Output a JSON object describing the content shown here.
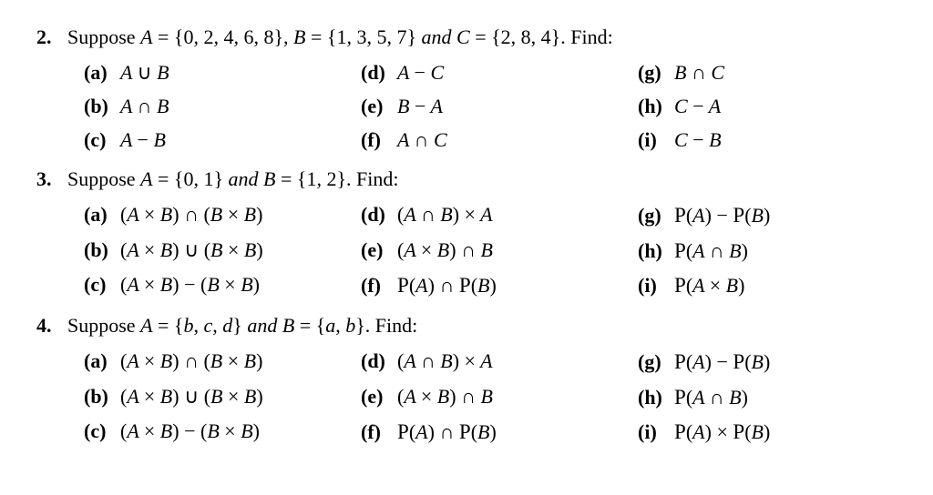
{
  "problems": [
    {
      "num": "2.",
      "stem_prefix": "Suppose ",
      "stem_sets": "A = {0, 2, 4, 6, 8},  B = {1, 3, 5, 7} and C = {2, 8, 4}.",
      "stem_suffix": "  Find:",
      "parts": [
        {
          "lbl": "(a)",
          "expr": "A ∪ B"
        },
        {
          "lbl": "(d)",
          "expr": "A − C"
        },
        {
          "lbl": "(g)",
          "expr": "B ∩ C"
        },
        {
          "lbl": "(b)",
          "expr": "A ∩ B"
        },
        {
          "lbl": "(e)",
          "expr": "B − A"
        },
        {
          "lbl": "(h)",
          "expr": "C − A"
        },
        {
          "lbl": "(c)",
          "expr": "A − B"
        },
        {
          "lbl": "(f)",
          "expr": "A ∩ C"
        },
        {
          "lbl": "(i)",
          "expr": "C − B"
        }
      ]
    },
    {
      "num": "3.",
      "stem_prefix": "Suppose ",
      "stem_sets": "A = {0, 1} and B = {1, 2}.",
      "stem_suffix": "  Find:",
      "parts": [
        {
          "lbl": "(a)",
          "expr": "(A × B) ∩ (B × B)"
        },
        {
          "lbl": "(d)",
          "expr": "(A ∩ B) × A"
        },
        {
          "lbl": "(g)",
          "expr": "𝒫(A) − 𝒫(B)",
          "script": true
        },
        {
          "lbl": "(b)",
          "expr": "(A × B) ∪ (B × B)"
        },
        {
          "lbl": "(e)",
          "expr": "(A × B) ∩ B"
        },
        {
          "lbl": "(h)",
          "expr": "𝒫(A ∩ B)",
          "script": true
        },
        {
          "lbl": "(c)",
          "expr": "(A × B) − (B × B)"
        },
        {
          "lbl": "(f)",
          "expr": "𝒫(A) ∩ 𝒫(B)",
          "script": true
        },
        {
          "lbl": "(i)",
          "expr": "𝒫(A × B)",
          "script": true
        }
      ]
    },
    {
      "num": "4.",
      "stem_prefix": "Suppose ",
      "stem_sets": "A = {b, c, d} and B = {a, b}.",
      "stem_suffix": "  Find:",
      "parts": [
        {
          "lbl": "(a)",
          "expr": "(A × B) ∩ (B × B)"
        },
        {
          "lbl": "(d)",
          "expr": "(A ∩ B) × A"
        },
        {
          "lbl": "(g)",
          "expr": "𝒫(A) − 𝒫(B)",
          "script": true
        },
        {
          "lbl": "(b)",
          "expr": "(A × B) ∪ (B × B)"
        },
        {
          "lbl": "(e)",
          "expr": "(A × B) ∩ B"
        },
        {
          "lbl": "(h)",
          "expr": "𝒫(A ∩ B)",
          "script": true
        },
        {
          "lbl": "(c)",
          "expr": "(A × B) − (B × B)"
        },
        {
          "lbl": "(f)",
          "expr": "𝒫(A) ∩ 𝒫(B)",
          "script": true
        },
        {
          "lbl": "(i)",
          "expr": "𝒫(A) × 𝒫(B)",
          "script": true
        }
      ]
    }
  ],
  "style": {
    "font_family": "Times New Roman",
    "font_size_pt": 16,
    "text_color": "#000000",
    "background": "#ffffff",
    "columns": 3
  }
}
